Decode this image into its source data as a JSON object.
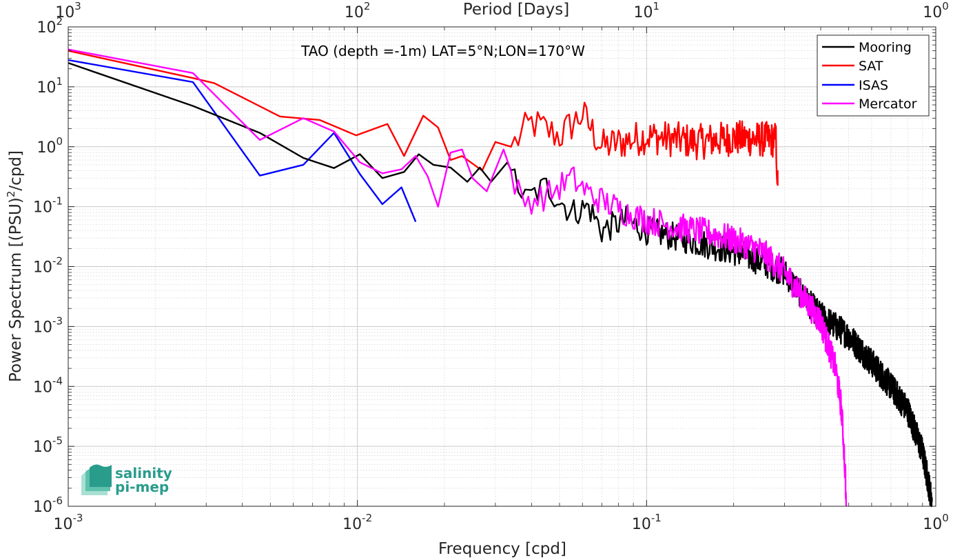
{
  "chart_data": {
    "type": "line",
    "title": "TAO (depth =-1m) LAT=5°N;LON=170°W",
    "xlabel": "Frequency [cpd]",
    "ylabel_main": "Power Spectrum [(PSU)",
    "ylabel_sup": "2",
    "ylabel_tail": "/cpd]",
    "top_xlabel": "Period [Days]",
    "x_scale": "log",
    "y_scale": "log",
    "xlim": [
      0.001,
      1
    ],
    "ylim": [
      1e-06,
      100
    ],
    "grid": true,
    "legend_position": "top-right",
    "x_ticks": [
      {
        "base": "10",
        "exp": "-3"
      },
      {
        "base": "10",
        "exp": "-2"
      },
      {
        "base": "10",
        "exp": "-1"
      },
      {
        "base": "10",
        "exp": "0"
      }
    ],
    "top_ticks": [
      {
        "base": "10",
        "exp": "3"
      },
      {
        "base": "10",
        "exp": "2"
      },
      {
        "base": "10",
        "exp": "1"
      },
      {
        "base": "10",
        "exp": "0"
      }
    ],
    "y_ticks": [
      {
        "base": "10",
        "exp": "-6"
      },
      {
        "base": "10",
        "exp": "-5"
      },
      {
        "base": "10",
        "exp": "-4"
      },
      {
        "base": "10",
        "exp": "-3"
      },
      {
        "base": "10",
        "exp": "-2"
      },
      {
        "base": "10",
        "exp": "-1"
      },
      {
        "base": "10",
        "exp": "0"
      },
      {
        "base": "10",
        "exp": "1"
      },
      {
        "base": "10",
        "exp": "2"
      }
    ],
    "series": [
      {
        "name": "Mooring",
        "color": "#000000",
        "kind": "mooring",
        "anchors": [
          [
            0.001,
            25
          ],
          [
            0.0027,
            4.8
          ],
          [
            0.0046,
            1.7
          ],
          [
            0.0065,
            0.65
          ],
          [
            0.0083,
            0.44
          ],
          [
            0.0102,
            0.75
          ],
          [
            0.0122,
            0.3
          ],
          [
            0.0145,
            0.38
          ],
          [
            0.0163,
            0.75
          ],
          [
            0.0183,
            0.5
          ],
          [
            0.021,
            0.45
          ],
          [
            0.024,
            0.26
          ],
          [
            0.0265,
            0.45
          ],
          [
            0.029,
            0.26
          ],
          [
            0.033,
            0.55
          ],
          [
            0.038,
            0.13
          ],
          [
            0.045,
            0.22
          ],
          [
            0.055,
            0.08
          ],
          [
            0.063,
            0.1
          ],
          [
            0.07,
            0.04
          ],
          [
            0.085,
            0.06
          ],
          [
            0.1,
            0.04
          ],
          [
            0.13,
            0.03
          ],
          [
            0.17,
            0.022
          ],
          [
            0.2,
            0.018
          ],
          [
            0.25,
            0.012
          ],
          [
            0.3,
            0.008
          ],
          [
            0.35,
            0.003
          ],
          [
            0.4,
            0.0015
          ],
          [
            0.5,
            0.0007
          ],
          [
            0.6,
            0.00025
          ],
          [
            0.7,
            0.0001
          ],
          [
            0.8,
            4e-05
          ],
          [
            0.9,
            8e-06
          ],
          [
            0.97,
            1.2e-06
          ]
        ]
      },
      {
        "name": "SAT",
        "color": "#ff0000",
        "kind": "sat",
        "anchors": [
          [
            0.001,
            40
          ],
          [
            0.0027,
            14
          ],
          [
            0.0032,
            11.5
          ],
          [
            0.0054,
            3.2
          ],
          [
            0.0074,
            2.8
          ],
          [
            0.0099,
            1.55
          ],
          [
            0.0127,
            2.4
          ],
          [
            0.0145,
            0.7
          ],
          [
            0.0169,
            3.3
          ],
          [
            0.019,
            2.1
          ],
          [
            0.021,
            0.6
          ],
          [
            0.023,
            0.7
          ],
          [
            0.027,
            0.4
          ],
          [
            0.03,
            1.2
          ],
          [
            0.034,
            1.0
          ],
          [
            0.04,
            2.5
          ],
          [
            0.05,
            1.5
          ],
          [
            0.06,
            3.5
          ],
          [
            0.07,
            1.0
          ],
          [
            0.1,
            1.5
          ],
          [
            0.15,
            1.2
          ],
          [
            0.2,
            1.4
          ],
          [
            0.28,
            1.3
          ],
          [
            0.284,
            0.23
          ]
        ]
      },
      {
        "name": "ISAS",
        "color": "#0000ff",
        "kind": "isas",
        "anchors": [
          [
            0.001,
            28
          ],
          [
            0.0027,
            12
          ],
          [
            0.0046,
            0.33
          ],
          [
            0.0065,
            0.5
          ],
          [
            0.0083,
            1.7
          ],
          [
            0.0102,
            0.35
          ],
          [
            0.0122,
            0.11
          ],
          [
            0.0142,
            0.21
          ],
          [
            0.0159,
            0.056
          ]
        ]
      },
      {
        "name": "Mercator",
        "color": "#ff00ff",
        "kind": "mercator",
        "anchors": [
          [
            0.001,
            42
          ],
          [
            0.0027,
            17
          ],
          [
            0.0046,
            1.3
          ],
          [
            0.0065,
            3.0
          ],
          [
            0.0083,
            1.8
          ],
          [
            0.0102,
            0.55
          ],
          [
            0.0122,
            0.36
          ],
          [
            0.0142,
            0.42
          ],
          [
            0.0159,
            0.7
          ],
          [
            0.0175,
            0.32
          ],
          [
            0.019,
            0.1
          ],
          [
            0.021,
            0.8
          ],
          [
            0.023,
            0.9
          ],
          [
            0.025,
            0.3
          ],
          [
            0.028,
            0.18
          ],
          [
            0.032,
            0.9
          ],
          [
            0.037,
            0.12
          ],
          [
            0.045,
            0.15
          ],
          [
            0.055,
            0.3
          ],
          [
            0.065,
            0.15
          ],
          [
            0.085,
            0.08
          ],
          [
            0.1,
            0.06
          ],
          [
            0.13,
            0.045
          ],
          [
            0.17,
            0.035
          ],
          [
            0.2,
            0.028
          ],
          [
            0.25,
            0.018
          ],
          [
            0.3,
            0.008
          ],
          [
            0.35,
            0.003
          ],
          [
            0.4,
            0.0012
          ],
          [
            0.45,
            0.0002
          ],
          [
            0.47,
            5e-05
          ],
          [
            0.48,
            1.2e-05
          ],
          [
            0.487,
            3e-06
          ],
          [
            0.49,
            1e-06
          ]
        ]
      }
    ]
  },
  "logo": {
    "line1": "salinity",
    "line2": "pi-mep"
  }
}
